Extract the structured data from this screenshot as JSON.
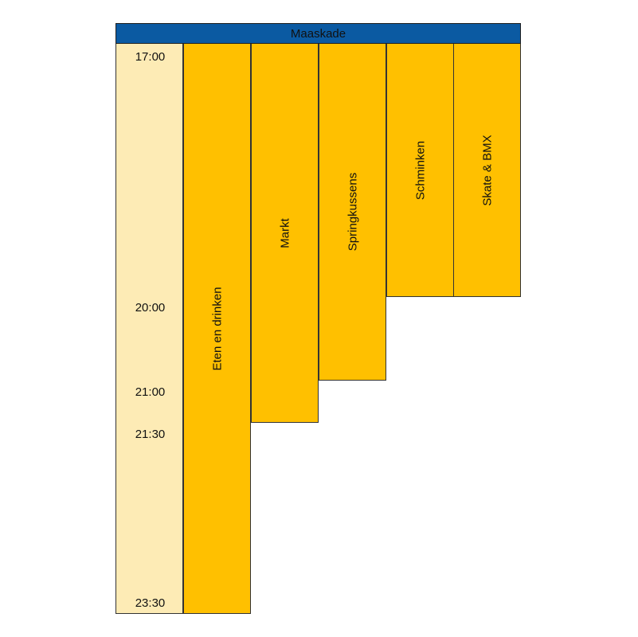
{
  "header": {
    "title": "Maaskade"
  },
  "times": [
    "17:00",
    "20:00",
    "21:00",
    "21:30",
    "23:30"
  ],
  "activities": [
    {
      "label": "Eten en drinken",
      "start": "17:00",
      "end": "23:30"
    },
    {
      "label": "Markt",
      "start": "17:00",
      "end": "21:30"
    },
    {
      "label": "Springkussens",
      "start": "17:00",
      "end": "21:00"
    },
    {
      "label": "Schminken",
      "start": "17:00",
      "end": "20:00"
    },
    {
      "label": "Skate & BMX",
      "start": "17:00",
      "end": "20:00"
    }
  ],
  "colors": {
    "header": "#0b5aa2",
    "time_column": "#fdebb5",
    "activity": "#ffc000"
  }
}
